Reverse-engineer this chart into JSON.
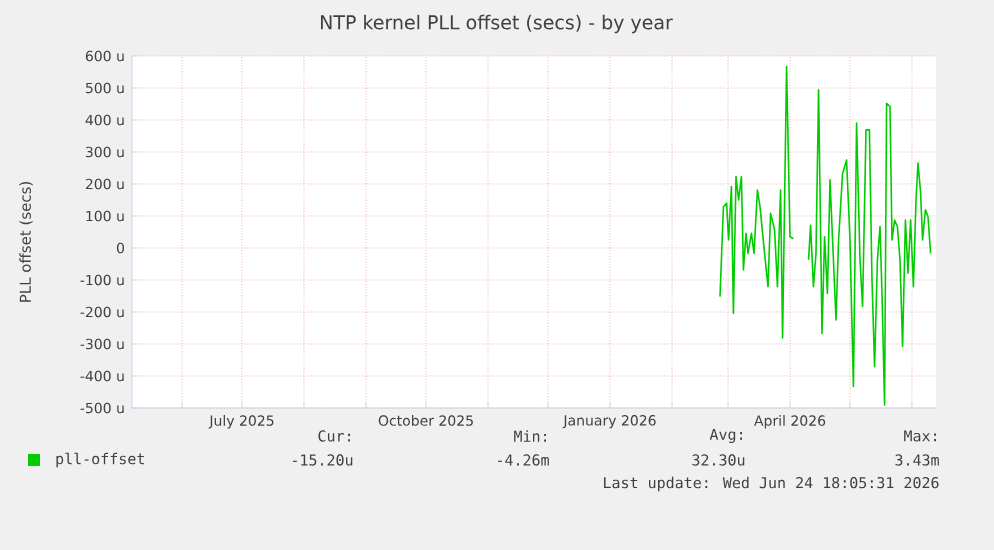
{
  "chart_data": {
    "type": "line",
    "title": "NTP kernel PLL offset (secs) - by year",
    "ylabel": "PLL offset (secs)",
    "xlim": [
      "2025-05-07",
      "2026-06-13"
    ],
    "xticks": [
      {
        "value": "2025-06-01",
        "label": null
      },
      {
        "value": "2025-07-01",
        "label": "July 2025"
      },
      {
        "value": "2025-08-01",
        "label": null
      },
      {
        "value": "2025-09-01",
        "label": null
      },
      {
        "value": "2025-10-01",
        "label": "October 2025"
      },
      {
        "value": "2025-11-01",
        "label": null
      },
      {
        "value": "2025-12-01",
        "label": null
      },
      {
        "value": "2026-01-01",
        "label": "January 2026"
      },
      {
        "value": "2026-02-01",
        "label": null
      },
      {
        "value": "2026-03-01",
        "label": null
      },
      {
        "value": "2026-04-01",
        "label": "April 2026"
      },
      {
        "value": "2026-05-01",
        "label": null
      },
      {
        "value": "2026-06-01",
        "label": null
      }
    ],
    "ylim": [
      -500,
      600
    ],
    "yticks": [
      {
        "value": -500,
        "label": "-500 u"
      },
      {
        "value": -400,
        "label": "-400 u"
      },
      {
        "value": -300,
        "label": "-300 u"
      },
      {
        "value": -200,
        "label": "-200 u"
      },
      {
        "value": -100,
        "label": "-100 u"
      },
      0,
      {
        "value": 100,
        "label": "100 u"
      },
      {
        "value": 200,
        "label": "200 u"
      },
      {
        "value": 300,
        "label": "300 u"
      },
      {
        "value": 400,
        "label": "400 u"
      },
      {
        "value": 500,
        "label": "500 u"
      },
      {
        "value": 600,
        "label": "600 u"
      }
    ],
    "grid": true,
    "legend": "bottom",
    "line_style": "solid",
    "x": [
      "2026-02-25T00:00",
      "2026-02-26T17:00",
      "2026-02-28T07:00",
      "2026-03-01T07:00",
      "2026-03-02T17:00",
      "2026-03-03T17:00",
      "2026-03-05T00:00",
      "2026-03-06T07:00",
      "2026-03-07T17:00",
      "2026-03-08T17:00",
      "2026-03-10T00:00",
      "2026-03-11T00:00",
      "2026-03-12T17:00",
      "2026-03-14T00:00",
      "2026-03-15T17:00",
      "2026-03-17T00:00",
      "2026-03-19T07:00",
      "2026-03-21T00:00",
      "2026-03-22T07:00",
      "2026-03-24T07:00",
      "2026-03-25T17:00",
      "2026-03-27T07:00",
      "2026-03-28T07:00",
      "2026-03-30T07:00",
      "2026-04-01T00:00",
      "2026-04-02T17:00",
      "2026-04-06T00:00",
      "2026-04-10T07:00",
      "2026-04-11T07:00",
      "2026-04-12T17:00",
      "2026-04-14T00:00",
      "2026-04-15T07:00",
      "2026-04-17T00:00",
      "2026-04-18T07:00",
      "2026-04-19T17:00",
      "2026-04-21T00:00",
      "2026-04-22T07:00",
      "2026-04-24T00:00",
      "2026-04-25T07:00",
      "2026-04-27T07:00",
      "2026-04-29T07:00",
      "2026-05-01T00:00",
      "2026-05-02T17:00",
      "2026-05-04T07:00",
      "2026-05-06T00:00",
      "2026-05-07T07:00",
      "2026-05-09T00:00",
      "2026-05-10T17:00",
      "2026-05-12T00:00",
      "2026-05-13T07:00",
      "2026-05-14T17:00",
      "2026-05-16T00:00",
      "2026-05-17T00:00",
      "2026-05-18T07:00",
      "2026-05-19T07:00",
      "2026-05-21T00:00",
      "2026-05-22T00:00",
      "2026-05-23T07:00",
      "2026-05-24T17:00",
      "2026-05-26T00:00",
      "2026-05-27T07:00",
      "2026-05-28T17:00",
      "2026-05-30T00:00",
      "2026-05-31T07:00",
      "2026-06-01T17:00",
      "2026-06-03T00:00",
      "2026-06-04T00:00",
      "2026-06-05T07:00",
      "2026-06-06T07:00",
      "2026-06-07T17:00",
      "2026-06-09T00:00",
      "2026-06-10T07:00"
    ],
    "series": [
      {
        "name": "pll-offset",
        "color": "#00cc00",
        "values": [
          -152,
          129,
          140,
          25,
          192,
          -204,
          223,
          150,
          223,
          -69,
          46,
          -17,
          46,
          -17,
          181,
          129,
          -17,
          -121,
          108,
          56,
          -121,
          181,
          -281,
          567,
          35,
          29,
          null,
          -37,
          71,
          -121,
          -17,
          494,
          -267,
          35,
          -142,
          213,
          25,
          -225,
          25,
          233,
          275,
          25,
          -433,
          390,
          -37,
          -183,
          369,
          369,
          -100,
          -371,
          -37,
          67,
          -142,
          -491,
          452,
          442,
          25,
          87,
          67,
          -37,
          -308,
          87,
          -79,
          87,
          -121,
          150,
          265,
          175,
          25,
          119,
          98,
          -17
        ]
      }
    ],
    "annotations": [
      "Cur:",
      "Min:",
      "Avg:",
      "Max:",
      "-15.20u",
      "-4.26m",
      "32.30u",
      "3.43m",
      "Last update: Wed Jun 24 18:05:31 2026"
    ]
  }
}
